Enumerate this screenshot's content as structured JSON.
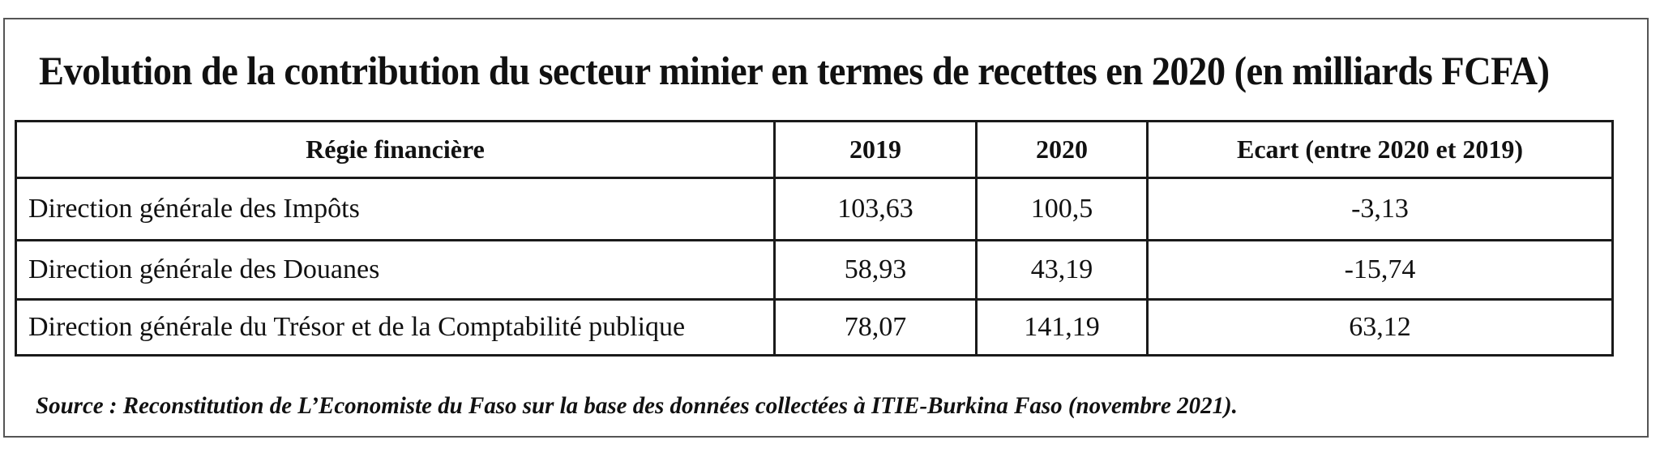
{
  "title": "Evolution de la contribution du secteur minier en termes de recettes en 2020 (en milliards FCFA)",
  "table": {
    "headers": [
      "Régie financière",
      "2019",
      "2020",
      "Ecart (entre 2020 et 2019)"
    ],
    "rows": [
      [
        "Direction générale des Impôts",
        "103,63",
        "100,5",
        "-3,13"
      ],
      [
        "Direction générale des Douanes",
        "58,93",
        "43,19",
        "-15,74"
      ],
      [
        "Direction générale du Trésor et de la Comptabilité publique",
        "78,07",
        "141,19",
        "63,12"
      ]
    ]
  },
  "source": "Source : Reconstitution de L’Economiste du Faso sur la base des données collectées à ITIE-Burkina Faso (novembre 2021)."
}
